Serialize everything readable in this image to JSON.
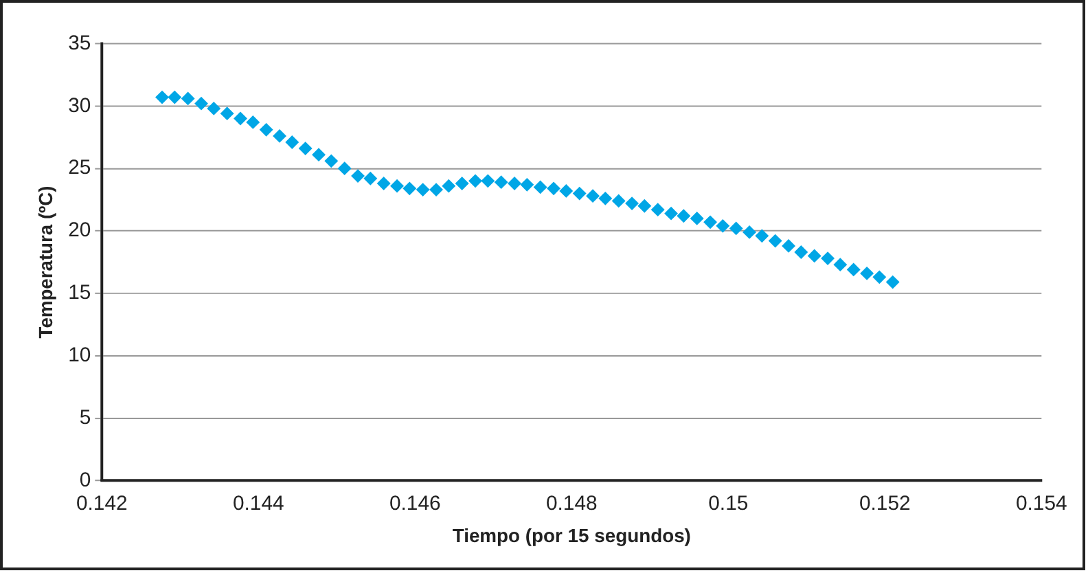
{
  "chart_data": {
    "type": "scatter",
    "xlabel": "Tiempo (por 15 segundos)",
    "ylabel": "Temperatura (ºC)",
    "x": [
      0.14277,
      0.14293,
      0.1431,
      0.14327,
      0.14343,
      0.1436,
      0.14377,
      0.14393,
      0.1441,
      0.14427,
      0.14443,
      0.1446,
      0.14477,
      0.14493,
      0.1451,
      0.14527,
      0.14543,
      0.1456,
      0.14577,
      0.14593,
      0.1461,
      0.14627,
      0.14643,
      0.1466,
      0.14677,
      0.14693,
      0.1471,
      0.14727,
      0.14743,
      0.1476,
      0.14777,
      0.14793,
      0.1481,
      0.14827,
      0.14843,
      0.1486,
      0.14877,
      0.14893,
      0.1491,
      0.14927,
      0.14943,
      0.1496,
      0.14977,
      0.14993,
      0.1501,
      0.15027,
      0.15043,
      0.1506,
      0.15077,
      0.15093,
      0.1511,
      0.15127,
      0.15143,
      0.1516,
      0.15177,
      0.15193,
      0.1521
    ],
    "series": [
      {
        "color": "#00a6e6",
        "values": [
          30.7,
          30.7,
          30.6,
          30.2,
          29.8,
          29.4,
          29.0,
          28.7,
          28.1,
          27.6,
          27.1,
          26.6,
          26.1,
          25.6,
          25.0,
          24.4,
          24.2,
          23.8,
          23.6,
          23.4,
          23.3,
          23.3,
          23.6,
          23.8,
          24.0,
          24.0,
          23.9,
          23.8,
          23.7,
          23.5,
          23.4,
          23.2,
          23.0,
          22.8,
          22.6,
          22.4,
          22.2,
          22.0,
          21.7,
          21.4,
          21.2,
          21.0,
          20.7,
          20.4,
          20.2,
          19.9,
          19.6,
          19.2,
          18.8,
          18.3,
          18.0,
          17.8,
          17.3,
          16.9,
          16.6,
          16.3,
          15.9
        ]
      }
    ],
    "xlim": [
      0.142,
      0.154
    ],
    "xticks": [
      0.142,
      0.144,
      0.146,
      0.148,
      0.15,
      0.152,
      0.154
    ],
    "ylim": [
      0,
      35
    ],
    "yticks": [
      0,
      5,
      10,
      15,
      20,
      25,
      30,
      35
    ],
    "grid": "y",
    "legend": false,
    "marker": "diamond"
  }
}
